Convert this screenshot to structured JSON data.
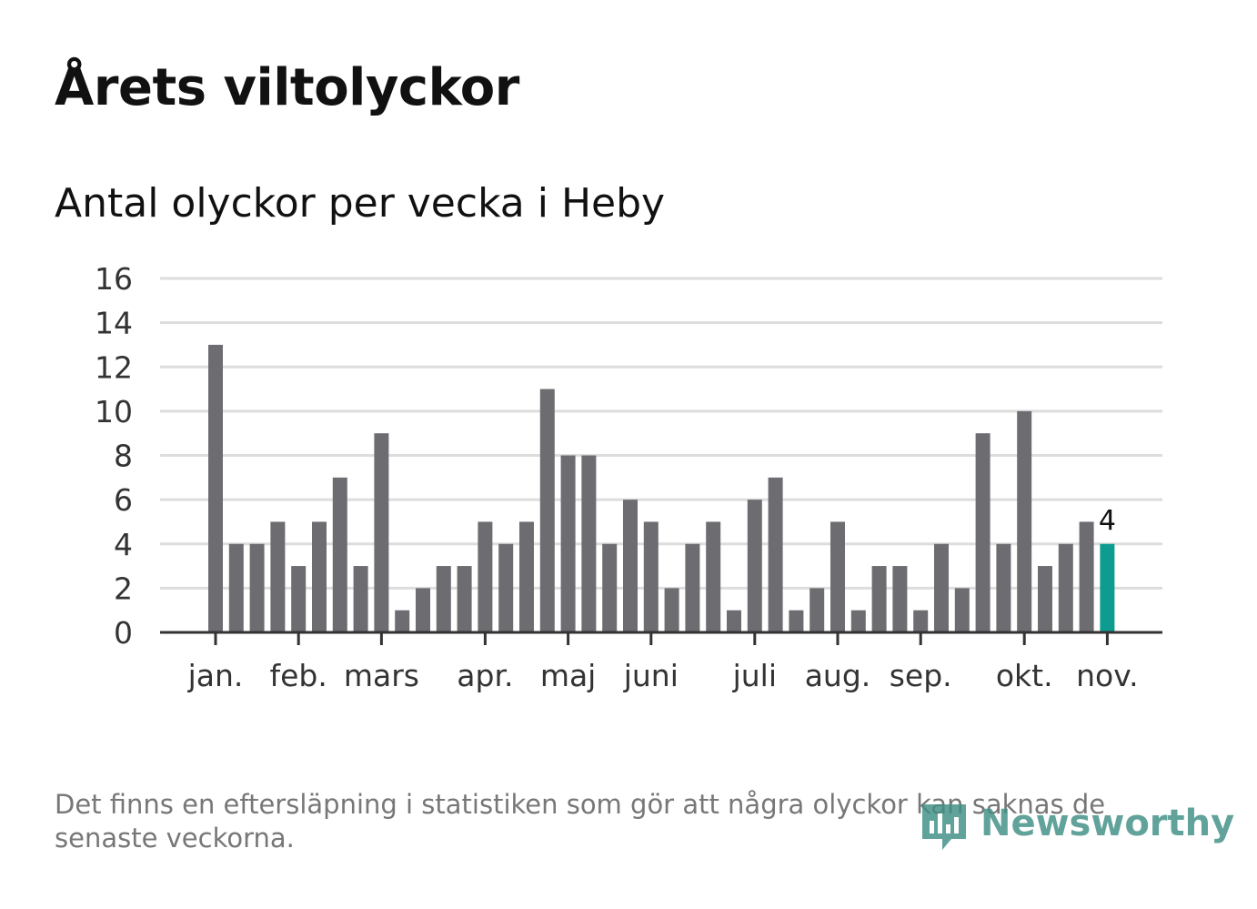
{
  "title": "Årets viltolyckor",
  "subtitle": "Antal olyckor per vecka i Heby",
  "footnote": "Det finns en eftersläpning i statistiken som gör att några olyckor kan saknas de senaste veckorna.",
  "logo": {
    "text": "Newsworthy",
    "icon": "newsworthy-bar-chart-icon"
  },
  "colors": {
    "bar": "#6d6c71",
    "highlight": "#0d9c8f",
    "grid": "#dddddd",
    "axis": "#333333",
    "tick_text": "#333333",
    "logo": "#3f8f86"
  },
  "chart_data": {
    "type": "bar",
    "title": "Antal olyckor per vecka i Heby",
    "xlabel": "",
    "ylabel": "",
    "ylim": [
      0,
      16
    ],
    "yticks": [
      0,
      2,
      4,
      6,
      8,
      10,
      12,
      14,
      16
    ],
    "grid": true,
    "values": [
      13,
      4,
      4,
      5,
      3,
      5,
      7,
      3,
      9,
      1,
      2,
      3,
      3,
      5,
      4,
      5,
      11,
      8,
      8,
      4,
      6,
      5,
      2,
      4,
      5,
      1,
      6,
      7,
      1,
      2,
      5,
      1,
      3,
      3,
      1,
      4,
      2,
      9,
      4,
      10,
      3,
      4,
      5,
      4
    ],
    "month_ticks": [
      {
        "label": "jan.",
        "week_index": 0
      },
      {
        "label": "feb.",
        "week_index": 4
      },
      {
        "label": "mars",
        "week_index": 8
      },
      {
        "label": "apr.",
        "week_index": 13
      },
      {
        "label": "maj",
        "week_index": 17
      },
      {
        "label": "juni",
        "week_index": 21
      },
      {
        "label": "juli",
        "week_index": 26
      },
      {
        "label": "aug.",
        "week_index": 30
      },
      {
        "label": "sep.",
        "week_index": 34
      },
      {
        "label": "okt.",
        "week_index": 39
      },
      {
        "label": "nov.",
        "week_index": 43
      }
    ],
    "highlight_index": 43,
    "highlight_label": "4"
  }
}
